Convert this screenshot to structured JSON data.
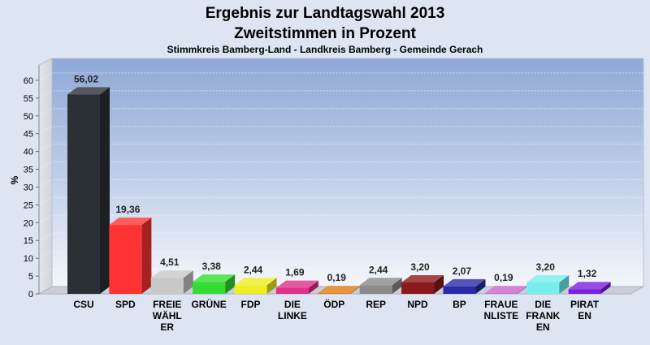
{
  "chart_data": {
    "type": "bar",
    "title": "Ergebnis zur Landtagswahl 2013",
    "title2": "Zweitstimmen in Prozent",
    "subtitle": "Stimmkreis Bamberg-Land - Landkreis Bamberg - Gemeinde Gerach",
    "ylabel": "%",
    "xlabel": "",
    "ylim": [
      0,
      65
    ],
    "yticks": [
      0,
      5,
      10,
      15,
      20,
      25,
      30,
      35,
      40,
      45,
      50,
      55,
      60
    ],
    "grid": true,
    "categories": [
      [
        "CSU"
      ],
      [
        "SPD"
      ],
      [
        "FREIE",
        "WÄHL",
        "ER"
      ],
      [
        "GRÜNE"
      ],
      [
        "FDP"
      ],
      [
        "DIE",
        "LINKE"
      ],
      [
        "ÖDP"
      ],
      [
        "REP"
      ],
      [
        "NPD"
      ],
      [
        "BP"
      ],
      [
        "FRAUE",
        "NLISTE"
      ],
      [
        "DIE",
        "FRANK",
        "EN"
      ],
      [
        "PIRAT",
        "EN"
      ]
    ],
    "values": [
      56.02,
      19.36,
      4.51,
      3.38,
      2.44,
      1.69,
      0.19,
      2.44,
      3.2,
      2.07,
      0.19,
      3.2,
      1.32
    ],
    "value_labels": [
      "56,02",
      "19,36",
      "4,51",
      "3,38",
      "2,44",
      "1,69",
      "0,19",
      "2,44",
      "3,20",
      "2,07",
      "0,19",
      "3,20",
      "1,32"
    ],
    "colors": [
      "#2b2f36",
      "#ff3333",
      "#c8c8c8",
      "#33dd33",
      "#eeee22",
      "#e0308a",
      "#e07a10",
      "#8a8a8a",
      "#8b1a1a",
      "#2a2aa8",
      "#cc66cc",
      "#77eeee",
      "#7a22dd"
    ]
  }
}
